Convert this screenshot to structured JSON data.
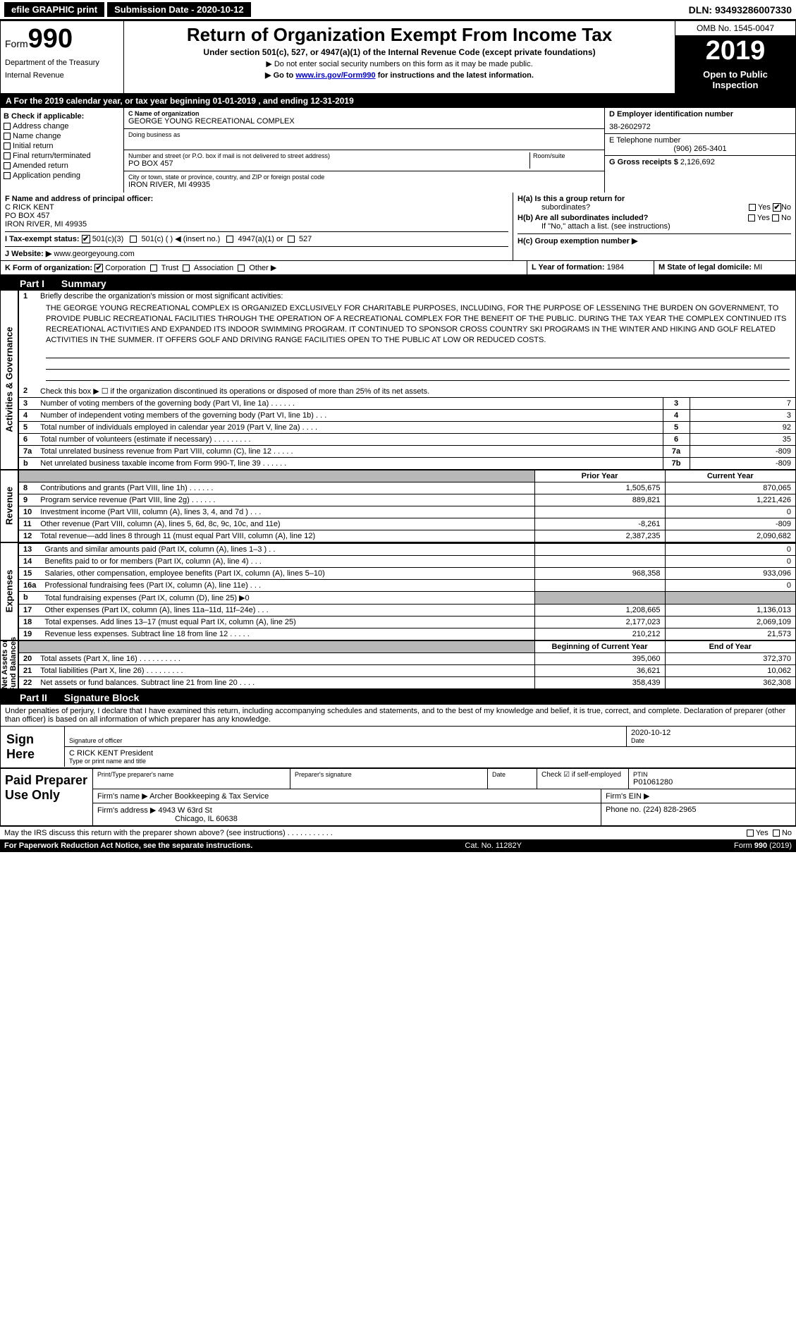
{
  "top_bar": {
    "efile": "efile GRAPHIC print",
    "submission": "Submission Date - 2020-10-12",
    "dln": "DLN: 93493286007330"
  },
  "header": {
    "form_prefix": "Form",
    "form_num": "990",
    "dept": "Department of the Treasury",
    "irs": "Internal Revenue",
    "title": "Return of Organization Exempt From Income Tax",
    "subtitle": "Under section 501(c), 527, or 4947(a)(1) of the Internal Revenue Code (except private foundations)",
    "instr1": "▶ Do not enter social security numbers on this form as it may be made public.",
    "instr2_pre": "▶ Go to ",
    "instr2_link": "www.irs.gov/Form990",
    "instr2_post": " for instructions and the latest information.",
    "omb": "OMB No. 1545-0047",
    "year": "2019",
    "open1": "Open to Public",
    "open2": "Inspection"
  },
  "tax_year_bar": "A For the 2019 calendar year, or tax year beginning 01-01-2019   , and ending 12-31-2019",
  "section_b": {
    "title": "B Check if applicable:",
    "items": [
      "Address change",
      "Name change",
      "Initial return",
      "Final return/terminated",
      "Amended return",
      "Application pending"
    ]
  },
  "section_c": {
    "name_label": "C Name of organization",
    "name": "GEORGE YOUNG RECREATIONAL COMPLEX",
    "dba_label": "Doing business as",
    "addr_label": "Number and street (or P.O. box if mail is not delivered to street address)",
    "addr": "PO BOX 457",
    "room_label": "Room/suite",
    "city_label": "City or town, state or province, country, and ZIP or foreign postal code",
    "city": "IRON RIVER, MI  49935"
  },
  "section_d": {
    "label": "D Employer identification number",
    "value": "38-2602972"
  },
  "section_e": {
    "label": "E Telephone number",
    "value": "(906) 265-3401"
  },
  "section_g": {
    "label": "G Gross receipts $",
    "value": "2,126,692"
  },
  "section_f": {
    "label": "F  Name and address of principal officer:",
    "name": "C RICK KENT",
    "addr": "PO BOX 457",
    "city": "IRON RIVER, MI  49935"
  },
  "section_h": {
    "ha": "H(a)  Is this a group return for",
    "ha2": "subordinates?",
    "hb": "H(b)  Are all subordinates included?",
    "hb_note": "If \"No,\" attach a list. (see instructions)",
    "hc": "H(c)  Group exemption number ▶",
    "yes": "Yes",
    "no": "No"
  },
  "section_i": {
    "label": "I  Tax-exempt status:",
    "opts": [
      "501(c)(3)",
      "501(c) (   ) ◀ (insert no.)",
      "4947(a)(1) or",
      "527"
    ]
  },
  "section_j": {
    "label": "J  Website: ▶",
    "value": "www.georgeyoung.com"
  },
  "section_k": {
    "label": "K Form of organization:",
    "opts": [
      "Corporation",
      "Trust",
      "Association",
      "Other ▶"
    ]
  },
  "section_l": {
    "label": "L Year of formation:",
    "value": "1984"
  },
  "section_m": {
    "label": "M State of legal domicile:",
    "value": "MI"
  },
  "part1": {
    "header_num": "Part I",
    "header_title": "Summary",
    "line1_label": "Briefly describe the organization's mission or most significant activities:",
    "mission": "THE GEORGE YOUNG RECREATIONAL COMPLEX IS ORGANIZED EXCLUSIVELY FOR CHARITABLE PURPOSES, INCLUDING, FOR THE PURPOSE OF LESSENING THE BURDEN ON GOVERNMENT, TO PROVIDE PUBLIC RECREATIONAL FACILITIES THROUGH THE OPERATION OF A RECREATIONAL COMPLEX FOR THE BENEFIT OF THE PUBLIC. DURING THE TAX YEAR THE COMPLEX CONTINUED ITS RECREATIONAL ACTIVITIES AND EXPANDED ITS INDOOR SWIMMING PROGRAM. IT CONTINUED TO SPONSOR CROSS COUNTRY SKI PROGRAMS IN THE WINTER AND HIKING AND GOLF RELATED ACTIVITIES IN THE SUMMER. IT OFFERS GOLF AND DRIVING RANGE FACILITIES OPEN TO THE PUBLIC AT LOW OR REDUCED COSTS.",
    "line2": "Check this box ▶ ☐ if the organization discontinued its operations or disposed of more than 25% of its net assets.",
    "lines_small": [
      {
        "n": "3",
        "t": "Number of voting members of the governing body (Part VI, line 1a)   .    .    .    .    .    .",
        "b": "3",
        "v": "7"
      },
      {
        "n": "4",
        "t": "Number of independent voting members of the governing body (Part VI, line 1b)   .    .    .",
        "b": "4",
        "v": "3"
      },
      {
        "n": "5",
        "t": "Total number of individuals employed in calendar year 2019 (Part V, line 2a)   .    .    .    .",
        "b": "5",
        "v": "92"
      },
      {
        "n": "6",
        "t": "Total number of volunteers (estimate if necessary)   .    .    .    .    .    .    .    .    .",
        "b": "6",
        "v": "35"
      },
      {
        "n": "7a",
        "t": "Total unrelated business revenue from Part VIII, column (C), line 12   .    .    .    .    .",
        "b": "7a",
        "v": "-809"
      },
      {
        "n": "b",
        "t": "Net unrelated business taxable income from Form 990-T, line 39   .    .    .    .    .    .",
        "b": "7b",
        "v": "-809"
      }
    ],
    "prior_hdr": "Prior Year",
    "curr_hdr": "Current Year",
    "revenue_lines": [
      {
        "n": "8",
        "t": "Contributions and grants (Part VIII, line 1h)   .    .    .    .    .    .",
        "p": "1,505,675",
        "c": "870,065"
      },
      {
        "n": "9",
        "t": "Program service revenue (Part VIII, line 2g)   .    .    .    .    .    .",
        "p": "889,821",
        "c": "1,221,426"
      },
      {
        "n": "10",
        "t": "Investment income (Part VIII, column (A), lines 3, 4, and 7d )   .    .    .",
        "p": "",
        "c": "0"
      },
      {
        "n": "11",
        "t": "Other revenue (Part VIII, column (A), lines 5, 6d, 8c, 9c, 10c, and 11e)",
        "p": "-8,261",
        "c": "-809"
      },
      {
        "n": "12",
        "t": "Total revenue—add lines 8 through 11 (must equal Part VIII, column (A), line 12)",
        "p": "2,387,235",
        "c": "2,090,682"
      }
    ],
    "expense_lines": [
      {
        "n": "13",
        "t": "Grants and similar amounts paid (Part IX, column (A), lines 1–3 )   .    .",
        "p": "",
        "c": "0"
      },
      {
        "n": "14",
        "t": "Benefits paid to or for members (Part IX, column (A), line 4)   .    .    .",
        "p": "",
        "c": "0"
      },
      {
        "n": "15",
        "t": "Salaries, other compensation, employee benefits (Part IX, column (A), lines 5–10)",
        "p": "968,358",
        "c": "933,096"
      },
      {
        "n": "16a",
        "t": "Professional fundraising fees (Part IX, column (A), line 11e)   .    .    .",
        "p": "",
        "c": "0"
      },
      {
        "n": "b",
        "t": "Total fundraising expenses (Part IX, column (D), line 25) ▶0",
        "p": "grey",
        "c": "grey"
      },
      {
        "n": "17",
        "t": "Other expenses (Part IX, column (A), lines 11a–11d, 11f–24e)   .    .    .",
        "p": "1,208,665",
        "c": "1,136,013"
      },
      {
        "n": "18",
        "t": "Total expenses. Add lines 13–17 (must equal Part IX, column (A), line 25)",
        "p": "2,177,023",
        "c": "2,069,109"
      },
      {
        "n": "19",
        "t": "Revenue less expenses. Subtract line 18 from line 12   .    .    .    .    .",
        "p": "210,212",
        "c": "21,573"
      }
    ],
    "beg_hdr": "Beginning of Current Year",
    "end_hdr": "End of Year",
    "net_lines": [
      {
        "n": "20",
        "t": "Total assets (Part X, line 16)   .    .    .    .    .    .    .    .    .    .",
        "p": "395,060",
        "c": "372,370"
      },
      {
        "n": "21",
        "t": "Total liabilities (Part X, line 26)   .    .    .    .    .    .    .    .    .",
        "p": "36,621",
        "c": "10,062"
      },
      {
        "n": "22",
        "t": "Net assets or fund balances. Subtract line 21 from line 20   .    .    .    .",
        "p": "358,439",
        "c": "362,308"
      }
    ],
    "side_labels": {
      "activities": "Activities & Governance",
      "revenue": "Revenue",
      "expenses": "Expenses",
      "net": "Net Assets or\nFund Balances"
    }
  },
  "part2": {
    "header_num": "Part II",
    "header_title": "Signature Block",
    "penalties": "Under penalties of perjury, I declare that I have examined this return, including accompanying schedules and statements, and to the best of my knowledge and belief, it is true, correct, and complete. Declaration of preparer (other than officer) is based on all information of which preparer has any knowledge.",
    "sign_here": "Sign Here",
    "sig_officer": "Signature of officer",
    "sig_date": "Date",
    "sig_date_val": "2020-10-12",
    "officer_name": "C RICK KENT President",
    "officer_label": "Type or print name and title",
    "paid_title": "Paid Preparer Use Only",
    "prep_name_label": "Print/Type preparer's name",
    "prep_sig_label": "Preparer's signature",
    "date_label": "Date",
    "check_self": "Check ☑ if self-employed",
    "ptin_label": "PTIN",
    "ptin": "P01061280",
    "firm_name_label": "Firm's name    ▶",
    "firm_name": "Archer Bookkeeping & Tax Service",
    "firm_ein_label": "Firm's EIN ▶",
    "firm_addr_label": "Firm's address ▶",
    "firm_addr1": "4943 W 63rd St",
    "firm_addr2": "Chicago, IL  60638",
    "phone_label": "Phone no.",
    "phone": "(224) 828-2965",
    "discuss": "May the IRS discuss this return with the preparer shown above? (see instructions)   .    .    .    .    .    .    .    .    .    .    .",
    "yes": "Yes",
    "no": "No"
  },
  "footer": {
    "paperwork": "For Paperwork Reduction Act Notice, see the separate instructions.",
    "cat": "Cat. No. 11282Y",
    "form": "Form 990 (2019)"
  },
  "colors": {
    "black": "#000000",
    "white": "#ffffff",
    "grey": "#b8b8b8",
    "link": "#0000cc"
  }
}
